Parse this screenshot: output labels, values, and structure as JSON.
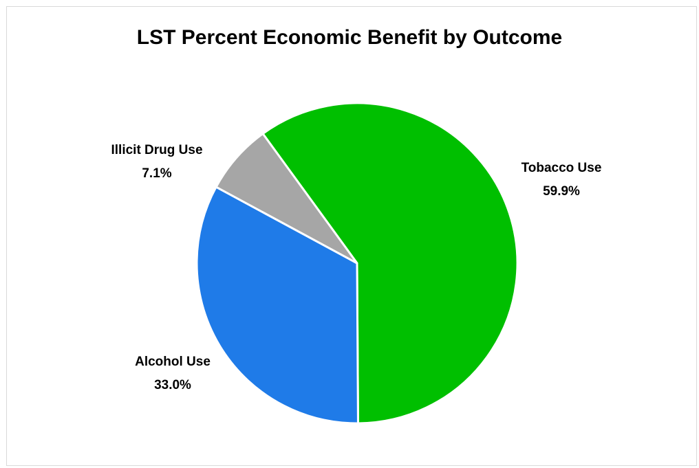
{
  "chart_data": {
    "type": "pie",
    "title": "LST Percent Economic Benefit by Outcome",
    "slices": [
      {
        "label": "Tobacco Use",
        "value": 59.9,
        "value_label": "59.9%",
        "color": "#00bf00"
      },
      {
        "label": "Alcohol Use",
        "value": 33.0,
        "value_label": "33.0%",
        "color": "#1f7be8"
      },
      {
        "label": "Illicit Drug Use",
        "value": 7.1,
        "value_label": "7.1%",
        "color": "#a6a6a6"
      }
    ],
    "start_angle_deg": -36,
    "direction": "clockwise",
    "slice_border_color": "#ffffff",
    "legend": "none"
  }
}
